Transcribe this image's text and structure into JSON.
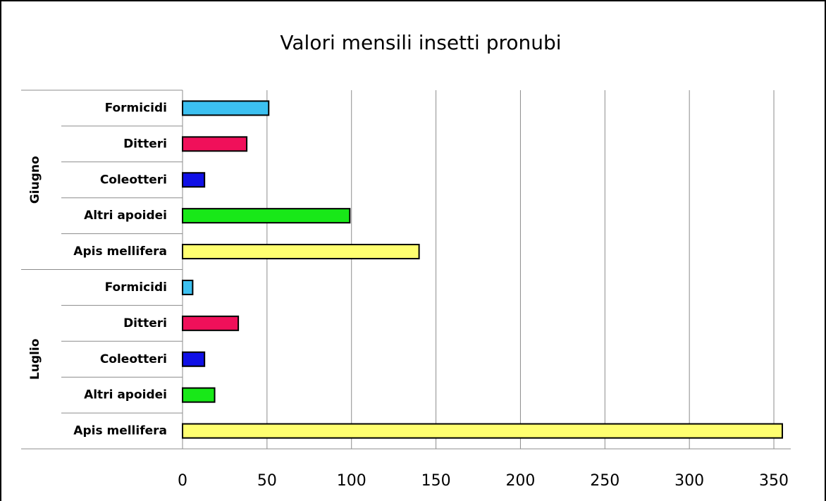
{
  "chart_data": {
    "type": "bar",
    "orientation": "horizontal",
    "title": "Valori mensili insetti pronubi",
    "groups": [
      {
        "name": "Giugno",
        "categories": [
          "Formicidi",
          "Ditteri",
          "Coleotteri",
          "Altri apoidei",
          "Apis mellifera"
        ],
        "values": [
          51,
          38,
          13,
          99,
          140
        ]
      },
      {
        "name": "Luglio",
        "categories": [
          "Formicidi",
          "Ditteri",
          "Coleotteri",
          "Altri apoidei",
          "Apis mellifera"
        ],
        "values": [
          6,
          33,
          13,
          19,
          355
        ]
      }
    ],
    "colors": [
      "#3cc0f0",
      "#f0105a",
      "#1010e6",
      "#18e818",
      "#ffff70"
    ],
    "xlim": [
      0,
      360
    ],
    "xticks": [
      0,
      50,
      100,
      150,
      200,
      250,
      300,
      350
    ],
    "grid": true
  }
}
